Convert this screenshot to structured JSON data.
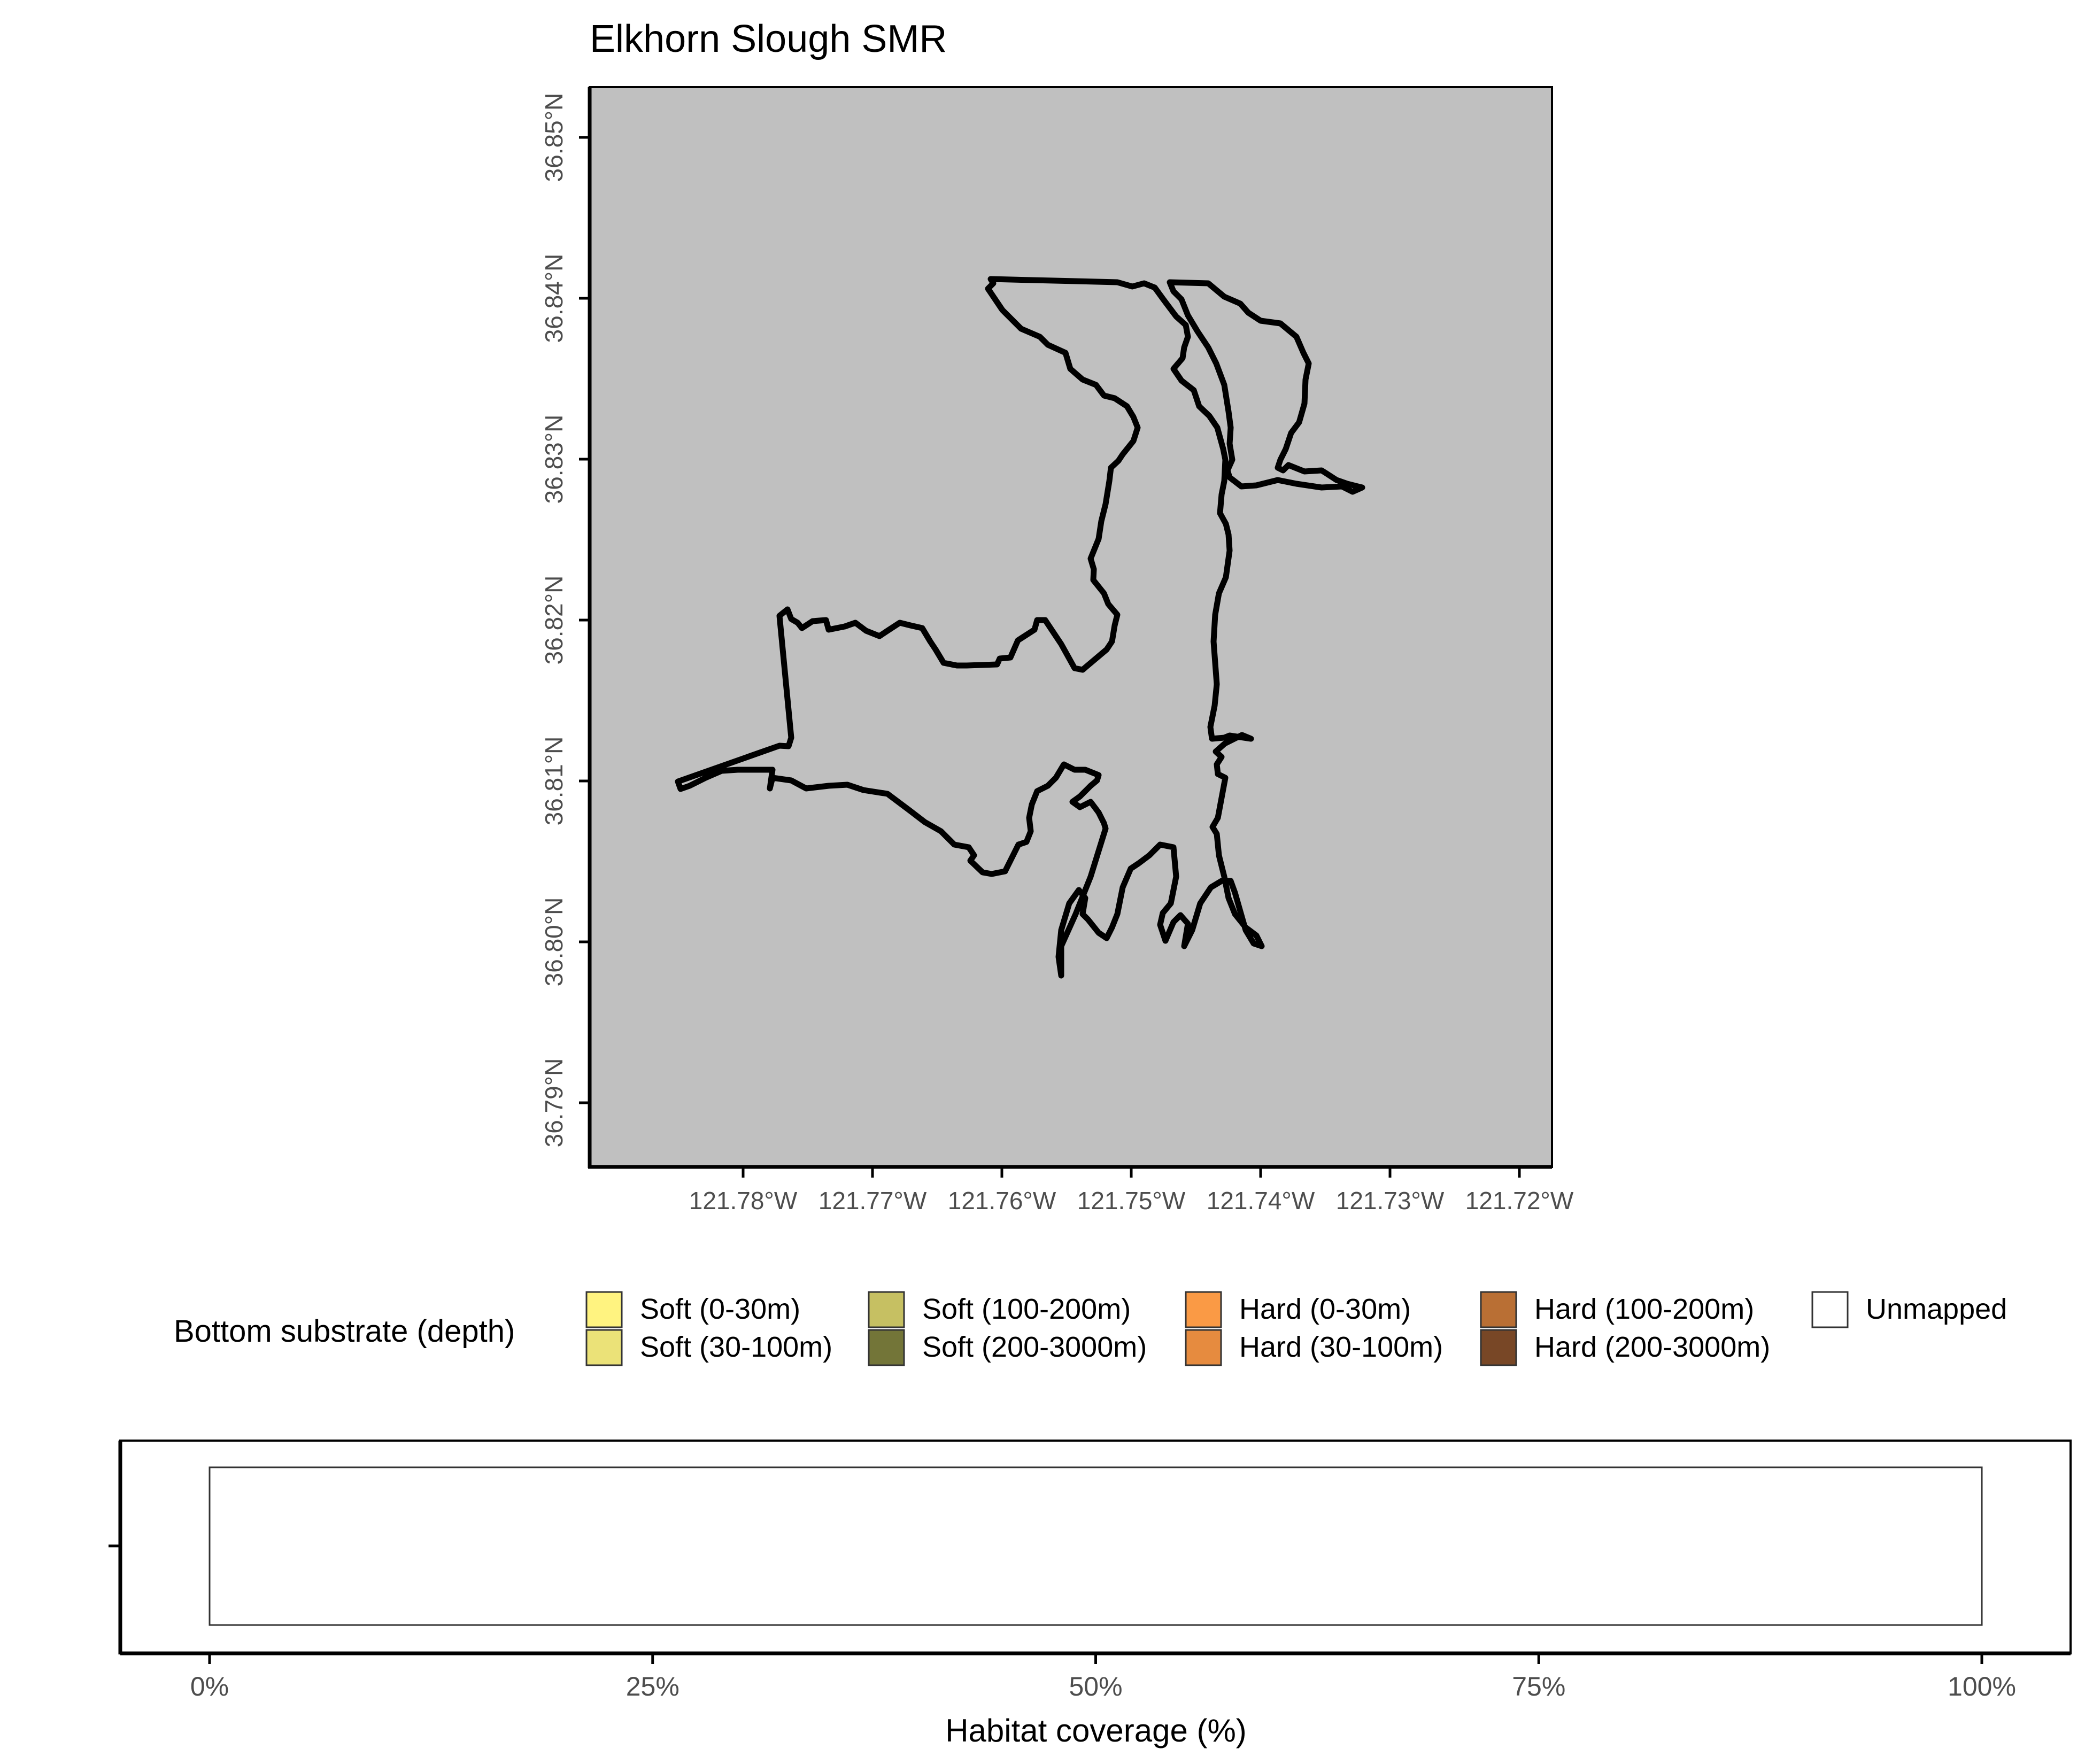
{
  "map": {
    "title": "Elkhorn Slough SMR",
    "panel_background": "#c0c0c0",
    "boundary_color": "#000000",
    "lon_ticks": [
      "121.78°W",
      "121.77°W",
      "121.76°W",
      "121.75°W",
      "121.74°W",
      "121.73°W",
      "121.72°W"
    ],
    "lat_ticks": [
      "36.79°N",
      "36.80°N",
      "36.81°N",
      "36.82°N",
      "36.83°N",
      "36.84°N",
      "36.85°N"
    ],
    "lon_range": [
      -121.7855,
      -121.7105
    ],
    "lat_range": [
      36.7896,
      36.8535
    ],
    "feature": "Elkhorn Slough SMR boundary outline"
  },
  "legend": {
    "title": "Bottom substrate (depth)",
    "items": [
      {
        "label": "Soft (0-30m)",
        "color": "#fff380"
      },
      {
        "label": "Soft (30-100m)",
        "color": "#ebe278"
      },
      {
        "label": "Soft (100-200m)",
        "color": "#c6c062"
      },
      {
        "label": "Soft (200-3000m)",
        "color": "#737538"
      },
      {
        "label": "Hard (0-30m)",
        "color": "#fa9a45"
      },
      {
        "label": "Hard (30-100m)",
        "color": "#e68b3f"
      },
      {
        "label": "Hard (100-200m)",
        "color": "#b96f34"
      },
      {
        "label": "Hard (200-3000m)",
        "color": "#784726"
      },
      {
        "label": "Unmapped",
        "color": "#ffffff"
      }
    ]
  },
  "coverage": {
    "xlabel": "Habitat coverage (%)",
    "ticks": [
      "0%",
      "25%",
      "50%",
      "75%",
      "100%"
    ]
  },
  "chart_data": {
    "type": "bar",
    "orientation": "horizontal",
    "stacked": true,
    "xlabel": "Habitat coverage (%)",
    "ylabel": "",
    "xlim": [
      0,
      100
    ],
    "categories": [
      ""
    ],
    "series": [
      {
        "name": "Unmapped",
        "values": [
          100
        ]
      }
    ],
    "grid": false
  }
}
